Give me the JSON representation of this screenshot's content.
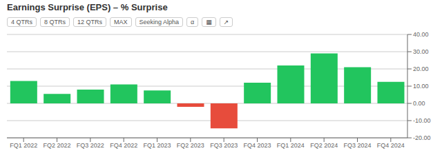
{
  "chart_data": {
    "type": "bar",
    "title": "Earnings Surprise (EPS) – % Surprise",
    "categories": [
      "FQ1 2022",
      "FQ2 2022",
      "FQ3 2022",
      "FQ4 2022",
      "FQ1 2023",
      "FQ2 2023",
      "FQ3 2023",
      "FQ4 2023",
      "FQ1 2024",
      "FQ2 2024",
      "FQ3 2024",
      "FQ4 2024"
    ],
    "values": [
      13.0,
      5.5,
      8.0,
      11.0,
      7.5,
      -2.0,
      -14.5,
      12.0,
      22.0,
      29.0,
      21.0,
      12.5
    ],
    "colors": [
      "#22c55e",
      "#22c55e",
      "#22c55e",
      "#22c55e",
      "#22c55e",
      "#e74c3c",
      "#e74c3c",
      "#22c55e",
      "#22c55e",
      "#22c55e",
      "#22c55e",
      "#22c55e"
    ],
    "ylim": [
      -20,
      40
    ],
    "yticks": [
      {
        "value": -20,
        "label": "-20.00"
      },
      {
        "value": -10,
        "label": "-10.00"
      },
      {
        "value": 0,
        "label": "0.00"
      },
      {
        "value": 10,
        "label": "10.00"
      },
      {
        "value": 20,
        "label": "20.00"
      },
      {
        "value": 30,
        "label": "30.00"
      },
      {
        "value": 40,
        "label": "40.00"
      }
    ],
    "grid": true,
    "annotations": [
      "4 QTRs",
      "8 QTRs",
      "12 QTRs",
      "MAX",
      "Seeking Alpha",
      "α",
      "▦",
      "↗"
    ]
  }
}
